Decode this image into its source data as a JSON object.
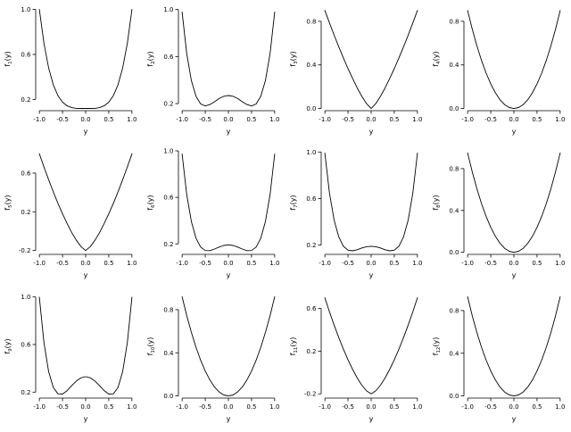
{
  "figure": {
    "background": "#ffffff",
    "line_color": "#000000",
    "text_color": "#000000"
  },
  "chart_data": {
    "type": "line",
    "layout": {
      "rows": 3,
      "cols": 4,
      "grid": false,
      "legend": "none"
    },
    "x_label": "y",
    "x_ticks": [
      -1.0,
      -0.5,
      0.0,
      0.5,
      1.0
    ],
    "xlim": [
      -1.08,
      1.08
    ],
    "x": [
      -1.0,
      -0.9,
      -0.8,
      -0.7,
      -0.6,
      -0.5,
      -0.4,
      -0.3,
      -0.2,
      -0.1,
      0.0,
      0.1,
      0.2,
      0.3,
      0.4,
      0.5,
      0.6,
      0.7,
      0.8,
      0.9,
      1.0
    ],
    "plots": [
      {
        "name": "f1",
        "ylabel": {
          "base": "f",
          "sub": "1",
          "arg": "(y)"
        },
        "yticks": [
          0.2,
          0.6,
          1.0
        ],
        "ylim": [
          0.1,
          1.02
        ],
        "values": [
          1.0,
          0.697,
          0.48,
          0.331,
          0.234,
          0.175,
          0.143,
          0.127,
          0.121,
          0.12,
          0.12,
          0.12,
          0.121,
          0.127,
          0.143,
          0.175,
          0.234,
          0.331,
          0.48,
          0.697,
          1.0
        ]
      },
      {
        "name": "f2",
        "ylabel": {
          "base": "f",
          "sub": "2",
          "arg": "(y)"
        },
        "yticks": [
          0.2,
          0.6,
          1.0
        ],
        "ylim": [
          0.14,
          1.02
        ],
        "values": [
          0.979,
          0.625,
          0.396,
          0.262,
          0.197,
          0.18,
          0.192,
          0.216,
          0.243,
          0.262,
          0.269,
          0.262,
          0.243,
          0.216,
          0.192,
          0.18,
          0.197,
          0.262,
          0.396,
          0.625,
          0.979
        ]
      },
      {
        "name": "f3",
        "ylabel": {
          "base": "f",
          "sub": "3",
          "arg": "(y)"
        },
        "yticks": [
          0.0,
          0.4,
          0.8
        ],
        "ylim": [
          -0.02,
          0.93
        ],
        "values": [
          0.9,
          0.785,
          0.673,
          0.566,
          0.464,
          0.365,
          0.274,
          0.188,
          0.111,
          0.045,
          0.0,
          0.045,
          0.111,
          0.188,
          0.274,
          0.365,
          0.464,
          0.566,
          0.673,
          0.785,
          0.9
        ]
      },
      {
        "name": "f4",
        "ylabel": {
          "base": "f",
          "sub": "4",
          "arg": "(y)"
        },
        "yticks": [
          0.0,
          0.4,
          0.8
        ],
        "ylim": [
          -0.02,
          0.93
        ],
        "values": [
          0.9,
          0.729,
          0.576,
          0.441,
          0.324,
          0.225,
          0.144,
          0.081,
          0.036,
          0.009,
          0.0,
          0.009,
          0.036,
          0.081,
          0.144,
          0.225,
          0.324,
          0.441,
          0.576,
          0.729,
          0.9
        ]
      },
      {
        "name": "f5",
        "ylabel": {
          "base": "f",
          "sub": "5",
          "arg": "(y)"
        },
        "yticks": [
          -0.2,
          0.2,
          0.6
        ],
        "ylim": [
          -0.24,
          0.83
        ],
        "values": [
          0.8,
          0.663,
          0.532,
          0.407,
          0.289,
          0.179,
          0.077,
          -0.015,
          -0.094,
          -0.16,
          -0.2,
          -0.16,
          -0.094,
          -0.015,
          0.077,
          0.179,
          0.289,
          0.407,
          0.532,
          0.663,
          0.8
        ]
      },
      {
        "name": "f6",
        "ylabel": {
          "base": "f",
          "sub": "6",
          "arg": "(y)"
        },
        "yticks": [
          0.2,
          0.6,
          1.0
        ],
        "ylim": [
          0.11,
          1.0
        ],
        "values": [
          0.972,
          0.624,
          0.392,
          0.249,
          0.173,
          0.143,
          0.142,
          0.156,
          0.173,
          0.187,
          0.192,
          0.187,
          0.173,
          0.156,
          0.142,
          0.143,
          0.173,
          0.249,
          0.392,
          0.624,
          0.972
        ]
      },
      {
        "name": "f7",
        "ylabel": {
          "base": "f",
          "sub": "7",
          "arg": "(y)"
        },
        "yticks": [
          0.2,
          0.6,
          1.0
        ],
        "ylim": [
          0.12,
          1.01
        ],
        "values": [
          0.991,
          0.646,
          0.415,
          0.27,
          0.19,
          0.156,
          0.151,
          0.16,
          0.175,
          0.186,
          0.19,
          0.186,
          0.175,
          0.16,
          0.151,
          0.156,
          0.19,
          0.27,
          0.415,
          0.646,
          0.991
        ]
      },
      {
        "name": "f8",
        "ylabel": {
          "base": "f",
          "sub": "8",
          "arg": "(y)"
        },
        "yticks": [
          0.0,
          0.4,
          0.8
        ],
        "ylim": [
          -0.02,
          0.97
        ],
        "values": [
          0.95,
          0.77,
          0.608,
          0.466,
          0.342,
          0.238,
          0.152,
          0.086,
          0.038,
          0.01,
          0.0,
          0.01,
          0.038,
          0.086,
          0.152,
          0.238,
          0.342,
          0.466,
          0.608,
          0.77,
          0.95
        ]
      },
      {
        "name": "f9",
        "ylabel": {
          "base": "f",
          "sub": "9",
          "arg": "(y)"
        },
        "yticks": [
          0.2,
          0.6,
          1.0
        ],
        "ylim": [
          0.15,
          1.02
        ],
        "values": [
          0.998,
          0.614,
          0.373,
          0.24,
          0.186,
          0.184,
          0.213,
          0.254,
          0.293,
          0.32,
          0.33,
          0.32,
          0.293,
          0.254,
          0.213,
          0.184,
          0.186,
          0.24,
          0.373,
          0.614,
          0.998
        ]
      },
      {
        "name": "f10",
        "ylabel": {
          "base": "f",
          "sub": "10",
          "arg": "(y)"
        },
        "yticks": [
          0.0,
          0.4,
          0.8
        ],
        "ylim": [
          -0.02,
          0.94
        ],
        "values": [
          0.92,
          0.745,
          0.589,
          0.451,
          0.331,
          0.23,
          0.147,
          0.083,
          0.037,
          0.009,
          0.0,
          0.009,
          0.037,
          0.083,
          0.147,
          0.23,
          0.331,
          0.451,
          0.589,
          0.745,
          0.92
        ]
      },
      {
        "name": "f11",
        "ylabel": {
          "base": "f",
          "sub": "11",
          "arg": "(y)"
        },
        "yticks": [
          -0.2,
          0.2,
          0.6
        ],
        "ylim": [
          -0.24,
          0.73
        ],
        "values": [
          0.7,
          0.568,
          0.444,
          0.327,
          0.218,
          0.118,
          0.028,
          -0.052,
          -0.12,
          -0.172,
          -0.2,
          -0.172,
          -0.12,
          -0.052,
          0.028,
          0.118,
          0.218,
          0.327,
          0.444,
          0.568,
          0.7
        ]
      },
      {
        "name": "f12",
        "ylabel": {
          "base": "f",
          "sub": "12",
          "arg": "(y)"
        },
        "yticks": [
          0.0,
          0.4,
          0.8
        ],
        "ylim": [
          -0.02,
          0.95
        ],
        "values": [
          0.93,
          0.753,
          0.595,
          0.456,
          0.335,
          0.233,
          0.149,
          0.084,
          0.037,
          0.009,
          0.0,
          0.009,
          0.037,
          0.084,
          0.149,
          0.233,
          0.335,
          0.456,
          0.595,
          0.753,
          0.93
        ]
      }
    ]
  }
}
